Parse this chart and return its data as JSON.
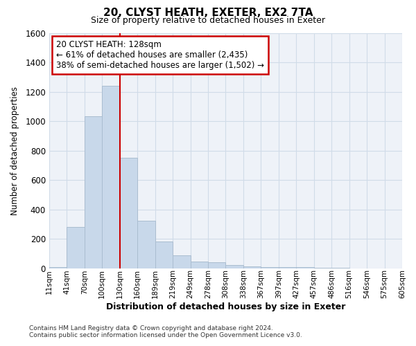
{
  "title": "20, CLYST HEATH, EXETER, EX2 7TA",
  "subtitle": "Size of property relative to detached houses in Exeter",
  "xlabel": "Distribution of detached houses by size in Exeter",
  "ylabel": "Number of detached properties",
  "bar_values": [
    10,
    280,
    1035,
    1240,
    750,
    325,
    185,
    90,
    47,
    40,
    22,
    14,
    10,
    8,
    10,
    3,
    5,
    0,
    0,
    0
  ],
  "bin_labels": [
    "11sqm",
    "41sqm",
    "70sqm",
    "100sqm",
    "130sqm",
    "160sqm",
    "189sqm",
    "219sqm",
    "249sqm",
    "278sqm",
    "308sqm",
    "338sqm",
    "367sqm",
    "397sqm",
    "427sqm",
    "457sqm",
    "486sqm",
    "516sqm",
    "546sqm",
    "575sqm",
    "605sqm"
  ],
  "bar_color": "#c8d8ea",
  "bar_edge_color": "#aabdd0",
  "annotation_title": "20 CLYST HEATH: 128sqm",
  "annotation_line1": "← 61% of detached houses are smaller (2,435)",
  "annotation_line2": "38% of semi-detached houses are larger (1,502) →",
  "annotation_box_color": "#ffffff",
  "annotation_box_edge": "#cc0000",
  "red_line_color": "#cc0000",
  "red_line_bin": 4,
  "ylim": [
    0,
    1600
  ],
  "yticks": [
    0,
    200,
    400,
    600,
    800,
    1000,
    1200,
    1400,
    1600
  ],
  "footer1": "Contains HM Land Registry data © Crown copyright and database right 2024.",
  "footer2": "Contains public sector information licensed under the Open Government Licence v3.0.",
  "grid_color": "#d0dce8",
  "background_color": "#eef2f8"
}
